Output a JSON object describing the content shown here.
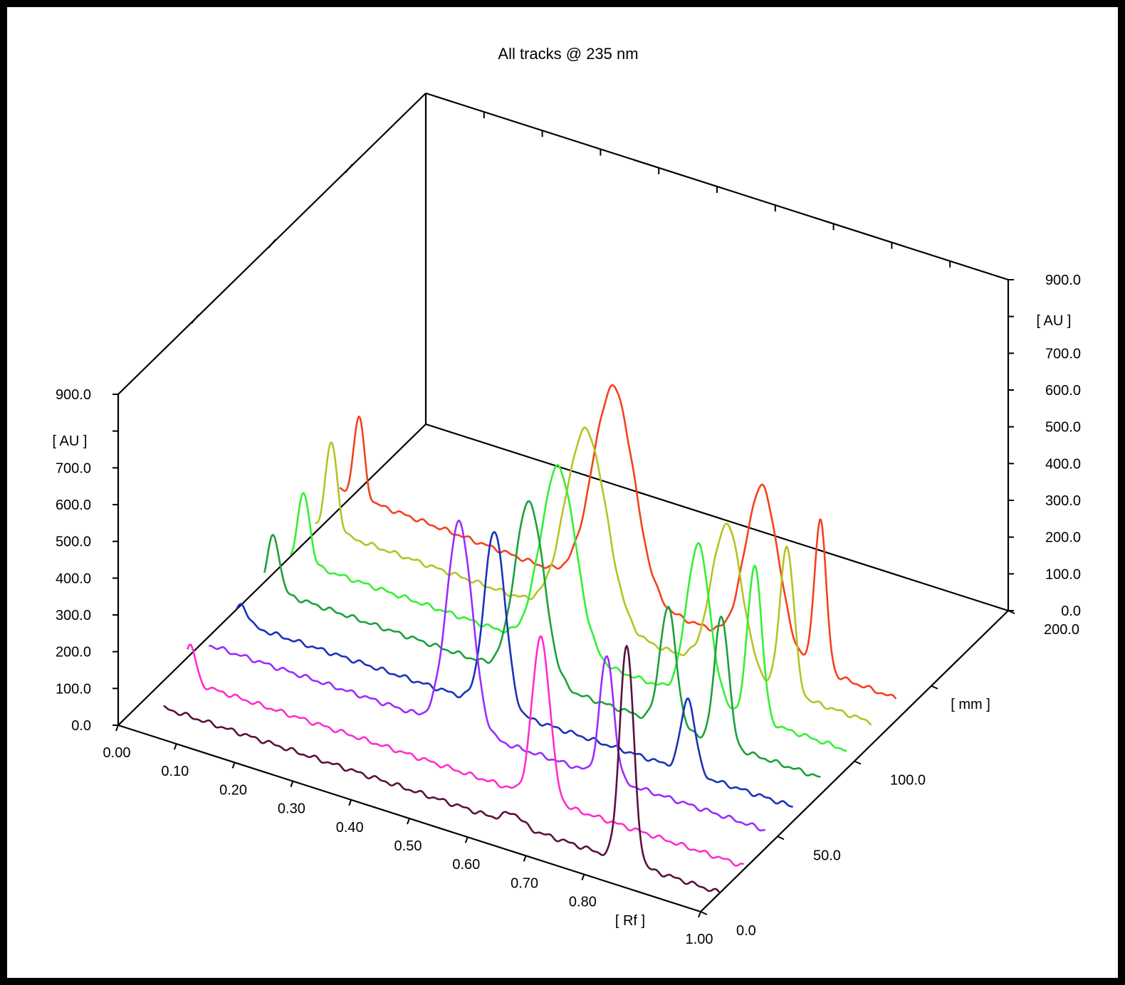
{
  "chart_data": {
    "type": "line",
    "title": "All tracks @ 235 nm",
    "x_axis": {
      "label": "[ Rf ]",
      "range": [
        0.0,
        1.0
      ],
      "ticks": [
        0.0,
        0.1,
        0.2,
        0.3,
        0.4,
        0.5,
        0.6,
        0.7,
        0.8,
        1.0
      ],
      "tick_labels": [
        "0.00",
        "0.10",
        "0.20",
        "0.30",
        "0.40",
        "0.50",
        "0.60",
        "0.70",
        "0.80",
        "1.00"
      ]
    },
    "depth_axis": {
      "label": "[ mm ]",
      "range": [
        0.0,
        200.0
      ],
      "ticks": [
        0.0,
        50.0,
        100.0,
        200.0
      ],
      "tick_labels": [
        "0.0",
        "50.0",
        "100.0",
        "200.0"
      ]
    },
    "left_z_axis": {
      "label": "[ AU ]",
      "range": [
        0.0,
        900.0
      ],
      "ticks": [
        0,
        100,
        200,
        300,
        400,
        500,
        600,
        700,
        900
      ],
      "tick_labels": [
        "0.0",
        "100.0",
        "200.0",
        "300.0",
        "400.0",
        "500.0",
        "600.0",
        "700.0",
        "900.0"
      ]
    },
    "right_z_axis": {
      "label": "[ AU ]",
      "range": [
        0.0,
        900.0
      ],
      "ticks": [
        0,
        100,
        200,
        300,
        400,
        500,
        600,
        700,
        900
      ],
      "tick_labels": [
        "0.0",
        "100.0",
        "200.0",
        "300.0",
        "400.0",
        "500.0",
        "600.0",
        "700.0",
        "900.0"
      ]
    },
    "grid": false,
    "series": [
      {
        "color": "#5a1040",
        "y_mm": 12.5,
        "baseline": [
          20,
          0
        ],
        "peaks": [
          [
            0.84,
            590,
            0.012
          ],
          [
            0.645,
            30,
            0.015
          ]
        ]
      },
      {
        "color": "#ff2ccf",
        "y_mm": 28,
        "baseline": [
          30,
          10
        ],
        "peaks": [
          [
            0.05,
            100,
            0.009
          ],
          [
            0.652,
            440,
            0.015
          ]
        ]
      },
      {
        "color": "#9b2bff",
        "y_mm": 42,
        "baseline": [
          70,
          50
        ],
        "peaks": [
          [
            0.475,
            560,
            0.022
          ],
          [
            0.728,
            330,
            0.012
          ]
        ]
      },
      {
        "color": "#1a32b8",
        "y_mm": 60,
        "baseline": [
          60,
          40
        ],
        "peaks": [
          [
            0.054,
            50,
            0.01
          ],
          [
            0.488,
            480,
            0.018
          ],
          [
            0.82,
            200,
            0.012
          ]
        ]
      },
      {
        "color": "#1ca03a",
        "y_mm": 78,
        "baseline": [
          80,
          45
        ],
        "peaks": [
          [
            0.061,
            150,
            0.01
          ],
          [
            0.5,
            480,
            0.025
          ],
          [
            0.738,
            320,
            0.014
          ],
          [
            0.83,
            350,
            0.012
          ]
        ]
      },
      {
        "color": "#33f033",
        "y_mm": 95,
        "baseline": [
          90,
          50
        ],
        "peaks": [
          [
            0.068,
            190,
            0.01
          ],
          [
            0.505,
            500,
            0.03
          ],
          [
            0.745,
            420,
            0.02
          ],
          [
            0.842,
            420,
            0.012
          ]
        ]
      },
      {
        "color": "#b5c322",
        "y_mm": 111,
        "baseline": [
          115,
          60
        ],
        "peaks": [
          [
            0.073,
            240,
            0.01
          ],
          [
            0.51,
            520,
            0.035
          ],
          [
            0.752,
            400,
            0.026
          ],
          [
            0.855,
            400,
            0.012
          ]
        ]
      },
      {
        "color": "#f5401c",
        "y_mm": 127,
        "baseline": [
          145,
          60
        ],
        "peaks": [
          [
            0.078,
            220,
            0.009
          ],
          [
            0.515,
            560,
            0.035
          ],
          [
            0.77,
            440,
            0.028
          ],
          [
            0.87,
            410,
            0.01
          ]
        ]
      }
    ]
  }
}
